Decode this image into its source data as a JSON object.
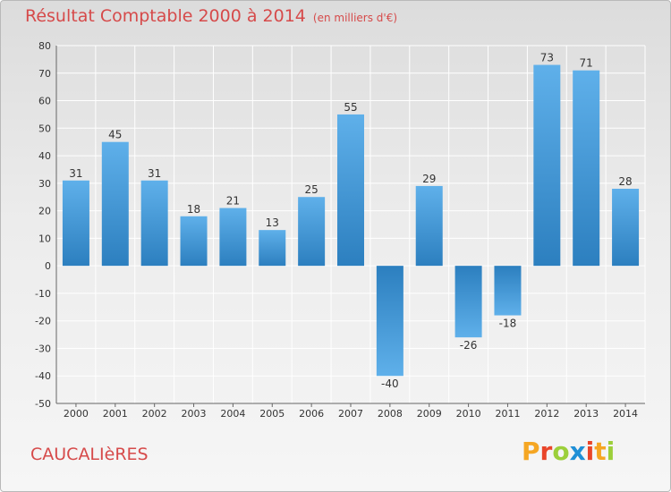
{
  "title": "Résultat Comptable 2000 à 2014",
  "subtitle": "(en milliers d'€)",
  "commune": "CAUCALIèRES",
  "logo": {
    "letters": [
      "P",
      "r",
      "o",
      "x",
      "i",
      "t",
      "i"
    ],
    "colors": [
      "#f5a623",
      "#e9452a",
      "#9ccf3a",
      "#1f8fd6",
      "#e9452a",
      "#f5a623",
      "#9ccf3a"
    ]
  },
  "colors": {
    "bar_top": "#5fb0ea",
    "bar_bottom": "#2c7fbf",
    "title": "#d64a4a",
    "grid": "#ffffff"
  },
  "chart_data": {
    "type": "bar",
    "title": "Résultat Comptable 2000 à 2014",
    "ylabel": "en milliers d'€",
    "xlabel": "",
    "categories": [
      "2000",
      "2001",
      "2002",
      "2003",
      "2004",
      "2005",
      "2006",
      "2007",
      "2008",
      "2009",
      "2010",
      "2011",
      "2012",
      "2013",
      "2014"
    ],
    "values": [
      31,
      45,
      31,
      18,
      21,
      13,
      25,
      55,
      -40,
      29,
      -26,
      -18,
      73,
      71,
      28
    ],
    "ylim": [
      -50,
      80
    ],
    "yticks": [
      80,
      70,
      60,
      50,
      40,
      30,
      20,
      10,
      0,
      -10,
      -20,
      -30,
      -40,
      -50
    ],
    "grid": true
  }
}
